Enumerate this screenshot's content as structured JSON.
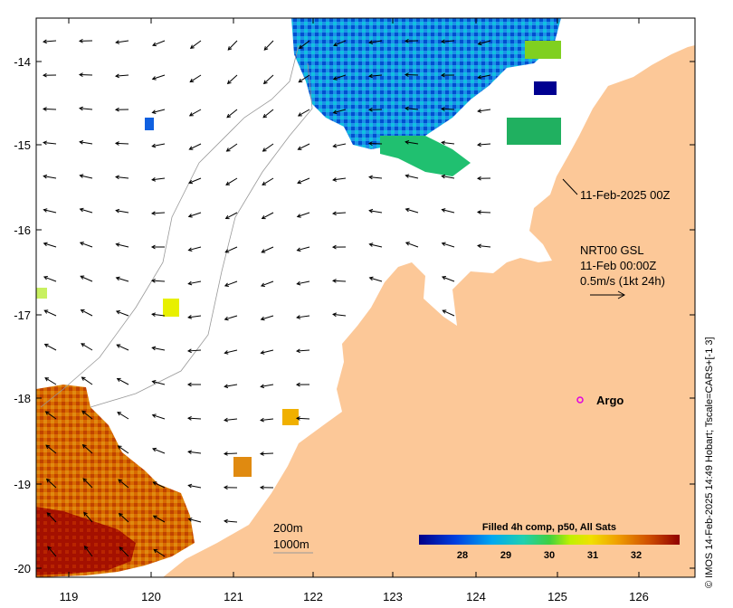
{
  "map": {
    "lat_ticks": [
      "-14",
      "-15",
      "-16",
      "-17",
      "-18",
      "-19",
      "-20"
    ],
    "lon_ticks": [
      "119",
      "120",
      "121",
      "122",
      "123",
      "124",
      "125",
      "126"
    ],
    "timestamp_label": "11-Feb-2025 00Z",
    "current_legend": {
      "line1": "NRT00 GSL",
      "line2": "11-Feb 00:00Z",
      "line3": "0.5m/s (1kt 24h)"
    },
    "argo": {
      "label": "Argo",
      "color": "#e000e0"
    },
    "isobaths": [
      "200m",
      "1000m"
    ],
    "colorbar": {
      "title": "Filled 4h comp, p50, All Sats",
      "ticks": [
        "28",
        "29",
        "30",
        "31",
        "32"
      ]
    },
    "credit": "© IMOS 14-Feb-2025 14:49 Hobart; Tscale=CARS+[-1 3]",
    "colors": {
      "land": "#fcc898",
      "ocean": "#ffffff",
      "cold": "#000090",
      "warm": "#a00000"
    }
  }
}
